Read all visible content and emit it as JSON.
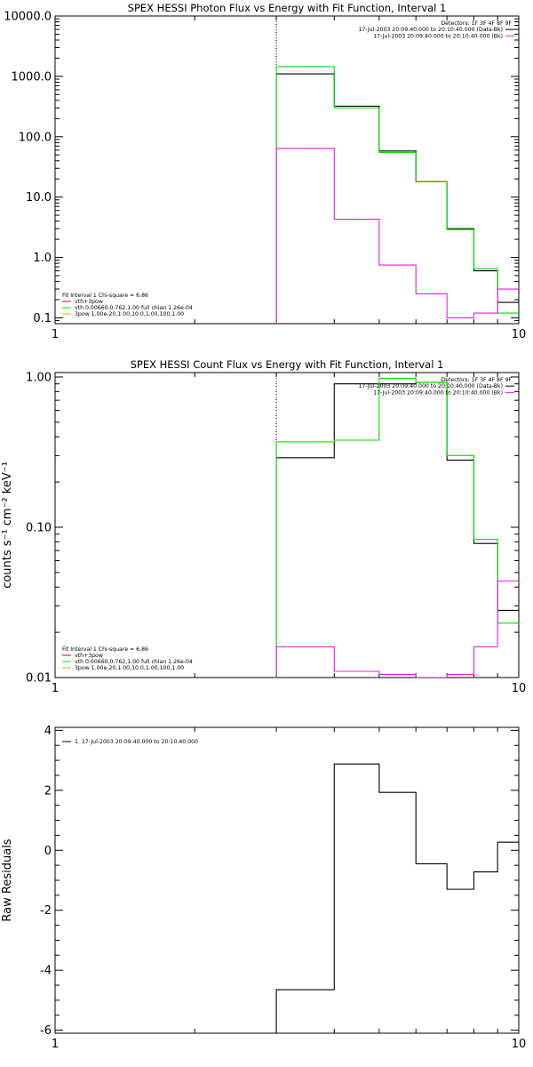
{
  "colors": {
    "observed": "#000000",
    "model_total": "#00dd00",
    "component_a": "#e020e0",
    "component_b": "#d00000",
    "component_c": "#d8b000",
    "marker": "#000000"
  },
  "chart_data": [
    {
      "type": "line",
      "title": "SPEX HESSI Photon Flux vs Energy with Fit Function, Interval 1",
      "xlabel": "",
      "ylabel": "",
      "xscale": "log",
      "yscale": "log",
      "xlim": [
        1,
        10
      ],
      "ylim": [
        0.08,
        10000
      ],
      "xticks": [
        {
          "value": 1,
          "label": "1"
        },
        {
          "value": 10,
          "label": "10"
        }
      ],
      "yticks": [
        {
          "value": 0.1,
          "label": "0.1"
        },
        {
          "value": 1,
          "label": "1.0"
        },
        {
          "value": 10,
          "label": "10.0"
        },
        {
          "value": 100,
          "label": "100.0"
        },
        {
          "value": 1000,
          "label": "1000.0"
        },
        {
          "value": 10000,
          "label": "10000.0"
        }
      ],
      "vline": 3,
      "edges": [
        3,
        4,
        5,
        6,
        7,
        8,
        9,
        10
      ],
      "series": [
        {
          "color_key": "observed",
          "values": [
            1100,
            320,
            58,
            18,
            3.0,
            0.6,
            0.18
          ]
        },
        {
          "color_key": "model_total",
          "values": [
            1450,
            300,
            55,
            18,
            2.9,
            0.65,
            0.12
          ]
        },
        {
          "color_key": "component_a",
          "values": [
            64,
            4.3,
            0.75,
            0.25,
            0.1,
            0.12,
            0.3
          ]
        }
      ],
      "legend_right": {
        "placement": "top-right",
        "lines": [
          {
            "text": "Detectors: 1F 3F 4F 8F 9F",
            "color_key": null
          },
          {
            "text": "17-Jul-2003 20:09:40.000 to 20:10:40.000 (Data-Bk)",
            "color_key": "observed"
          },
          {
            "text": "17-Jul-2003 20:09:40.000 to 20:10:40.000 (Bk)",
            "color_key": "component_a"
          }
        ]
      },
      "legend_left": {
        "placement": "bottom-left",
        "lines": [
          {
            "text": "Fit Interval 1    Chi-square = 6.86",
            "color_key": null
          },
          {
            "text": "vth+3pow",
            "color_key": "component_b"
          },
          {
            "text": "vth 0.00660,0.762,1.00   full chian 1.26e-04",
            "color_key": "model_total"
          },
          {
            "text": "3pow 1.00e-20,1.00,10.0,1.00,100,1.00",
            "color_key": "component_c"
          }
        ]
      }
    },
    {
      "type": "line",
      "title": "SPEX HESSI Count Flux vs Energy with Fit Function, Interval 1",
      "xlabel": "",
      "ylabel": "counts s⁻¹ cm⁻² keV⁻¹",
      "xscale": "log",
      "yscale": "log",
      "xlim": [
        1,
        10
      ],
      "ylim": [
        0.01,
        1.07
      ],
      "xticks": [
        {
          "value": 1,
          "label": "1"
        },
        {
          "value": 10,
          "label": "10"
        }
      ],
      "yticks": [
        {
          "value": 0.01,
          "label": "0.01"
        },
        {
          "value": 0.1,
          "label": "0.10"
        },
        {
          "value": 1,
          "label": "1.00"
        }
      ],
      "vline": 3,
      "edges": [
        3,
        4,
        5,
        6,
        7,
        8,
        9,
        10
      ],
      "series": [
        {
          "color_key": "observed",
          "values": [
            0.29,
            0.9,
            0.9,
            0.92,
            0.28,
            0.078,
            0.028
          ]
        },
        {
          "color_key": "model_total",
          "values": [
            0.37,
            0.38,
            0.98,
            0.92,
            0.3,
            0.083,
            0.023
          ]
        },
        {
          "color_key": "component_a",
          "values": [
            0.016,
            0.011,
            0.0105,
            0.0098,
            0.0105,
            0.016,
            0.044
          ]
        }
      ],
      "legend_right": {
        "placement": "top-right",
        "lines": [
          {
            "text": "Detectors: 1F 3F 4F 8F 9F",
            "color_key": null
          },
          {
            "text": "17-Jul-2003 20:09:40.000 to 20:10:40.000 (Data-Bk)",
            "color_key": "observed"
          },
          {
            "text": "17-Jul-2003 20:09:40.000 to 20:10:40.000 (Bk)",
            "color_key": "component_a"
          }
        ]
      },
      "legend_left": {
        "placement": "bottom-left",
        "lines": [
          {
            "text": "Fit Interval 1    Chi-square = 6.86",
            "color_key": null
          },
          {
            "text": "vth+3pow",
            "color_key": "component_b"
          },
          {
            "text": "vth 0.00660,0.762,1.00   full chian 1.26e-04",
            "color_key": "model_total"
          },
          {
            "text": "3pow 1.00e-20,1.00,10.0,1.00,100,1.00",
            "color_key": "component_c"
          }
        ]
      }
    },
    {
      "type": "line",
      "title": "",
      "xlabel": "",
      "ylabel": "Raw Residuals",
      "xscale": "log",
      "yscale": "linear",
      "xlim": [
        1,
        10
      ],
      "ylim": [
        -6.1,
        4.1
      ],
      "xticks": [
        {
          "value": 1,
          "label": "1"
        },
        {
          "value": 10,
          "label": "10"
        }
      ],
      "yticks": [
        {
          "value": -6,
          "label": "-6"
        },
        {
          "value": -4,
          "label": "-4"
        },
        {
          "value": -2,
          "label": "-2"
        },
        {
          "value": 0,
          "label": "0"
        },
        {
          "value": 2,
          "label": "2"
        },
        {
          "value": 4,
          "label": "4"
        }
      ],
      "vline": null,
      "edges": [
        3,
        4,
        5,
        6,
        7,
        8,
        9,
        10
      ],
      "series": [
        {
          "color_key": "observed",
          "values": [
            -4.65,
            2.88,
            1.93,
            -0.45,
            -1.3,
            -0.72,
            0.27
          ]
        }
      ],
      "legend_right": null,
      "legend_left": {
        "placement": "top-left",
        "lines": [
          {
            "text": "1. 17-Jul-2003 20:09:40.000 to 20:10:40.000",
            "color_key": "observed"
          }
        ]
      }
    }
  ]
}
